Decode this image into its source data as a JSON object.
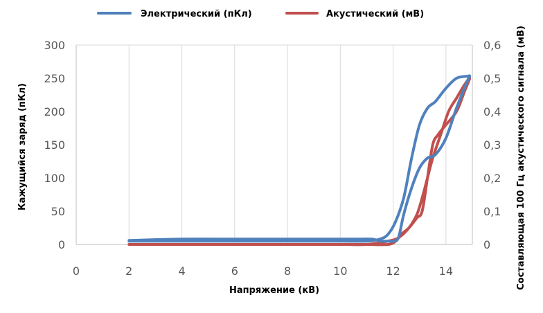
{
  "chart_data": {
    "type": "line",
    "xlabel": "Напряжение (кВ)",
    "ylabel_left": "Кажущийся заряд (пКл)",
    "ylabel_right": "Составляющая 100 Гц акустического сигнала (мВ)",
    "xlim": [
      0,
      15
    ],
    "ylim_left": [
      0,
      300
    ],
    "ylim_right": [
      0,
      0.6
    ],
    "x_ticks": [
      "0",
      "2",
      "4",
      "6",
      "8",
      "10",
      "12",
      "14"
    ],
    "y_left_ticks": [
      "0",
      "50",
      "100",
      "150",
      "200",
      "250",
      "300"
    ],
    "y_right_ticks": [
      "0",
      "0,1",
      "0,2",
      "0,3",
      "0,4",
      "0,5",
      "0,6"
    ],
    "grid": "vertical",
    "legend_position": "top",
    "series": [
      {
        "name": "Электрический (пКл)",
        "axis": "left",
        "color": "#4f81bd",
        "x": [
          2,
          4,
          6,
          8,
          10,
          11,
          11.5,
          11.8,
          12.1,
          12.4,
          12.7,
          13.0,
          13.3,
          13.6,
          14.0,
          14.4,
          14.8,
          14.9,
          14.8,
          14.4,
          14.0,
          13.6,
          13.3,
          13.0,
          12.7,
          12.4,
          12.2,
          12.0,
          11.8,
          11.5,
          11.2,
          10.5,
          8,
          6,
          4,
          2
        ],
        "y": [
          5,
          5,
          5,
          5,
          5,
          5,
          8,
          15,
          35,
          70,
          130,
          180,
          205,
          215,
          235,
          250,
          253,
          253,
          245,
          205,
          160,
          135,
          130,
          115,
          85,
          45,
          10,
          5,
          5,
          5,
          8,
          8,
          8,
          8,
          8,
          6
        ]
      },
      {
        "name": "Акустический (мВ)",
        "axis": "right",
        "color": "#c0504d",
        "x": [
          2,
          4,
          6,
          8,
          10,
          11,
          11.8,
          12.2,
          12.6,
          12.9,
          13.1,
          13.3,
          13.5,
          13.8,
          14.1,
          14.4,
          14.7,
          14.9,
          14.7,
          14.4,
          14.0,
          13.7,
          13.5,
          13.3,
          13.1,
          12.9,
          12.6,
          12.3,
          12.1,
          11.8,
          11.0,
          10,
          8,
          6,
          4,
          2
        ],
        "y": [
          0,
          0,
          0,
          0,
          0,
          0,
          0.01,
          0.02,
          0.05,
          0.09,
          0.14,
          0.2,
          0.26,
          0.33,
          0.4,
          0.44,
          0.48,
          0.5,
          0.46,
          0.4,
          0.36,
          0.33,
          0.3,
          0.2,
          0.1,
          0.08,
          0.05,
          0.03,
          0.01,
          0.0,
          0.0,
          0,
          0,
          0,
          0,
          0
        ]
      }
    ]
  }
}
